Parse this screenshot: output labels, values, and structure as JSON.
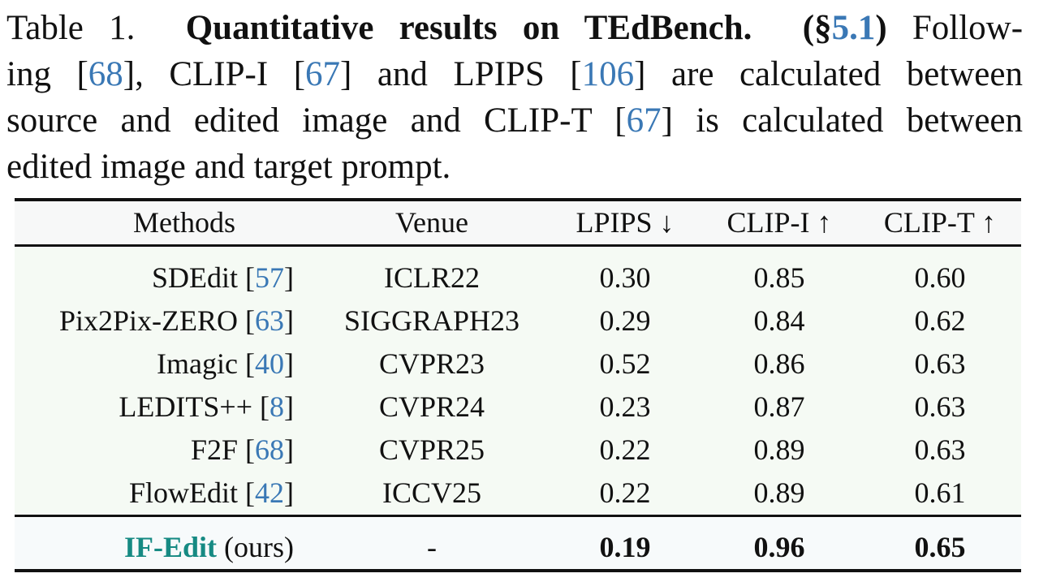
{
  "caption": {
    "label": "Table 1.",
    "title": "Quantitative results on TEdBench.",
    "sec_open": "(§",
    "sec_ref": "5.1",
    "sec_close": ") Follow-",
    "l2a": "ing [",
    "r68": "68",
    "l2b": "], CLIP-I [",
    "r67": "67",
    "l2c": "] and LPIPS [",
    "r106": "106",
    "l2d": "] are calculated between",
    "l3a": "source and edited image and CLIP-T [",
    "r67b": "67",
    "l3b": "] is calculated between",
    "l4": "edited image and target prompt."
  },
  "table": {
    "headers": [
      "Methods",
      "Venue",
      "LPIPS ↓",
      "CLIP-I ↑",
      "CLIP-T ↑"
    ],
    "rows": [
      {
        "method": "SDEdit",
        "ref": "57",
        "venue": "ICLR22",
        "lpips": "0.30",
        "clipi": "0.85",
        "clipt": "0.60"
      },
      {
        "method": "Pix2Pix-ZERO",
        "ref": "63",
        "venue": "SIGGRAPH23",
        "lpips": "0.29",
        "clipi": "0.84",
        "clipt": "0.62"
      },
      {
        "method": "Imagic",
        "ref": "40",
        "venue": "CVPR23",
        "lpips": "0.52",
        "clipi": "0.86",
        "clipt": "0.63"
      },
      {
        "method": "LEDITS++",
        "ref": "8",
        "venue": "CVPR24",
        "lpips": "0.23",
        "clipi": "0.87",
        "clipt": "0.63"
      },
      {
        "method": "F2F",
        "ref": "68",
        "venue": "CVPR25",
        "lpips": "0.22",
        "clipi": "0.89",
        "clipt": "0.63"
      },
      {
        "method": "FlowEdit",
        "ref": "42",
        "venue": "ICCV25",
        "lpips": "0.22",
        "clipi": "0.89",
        "clipt": "0.61"
      }
    ],
    "ours": {
      "method": "IF-Edit",
      "suffix": "(ours)",
      "venue": "-",
      "lpips": "0.19",
      "clipi": "0.96",
      "clipt": "0.65"
    }
  }
}
